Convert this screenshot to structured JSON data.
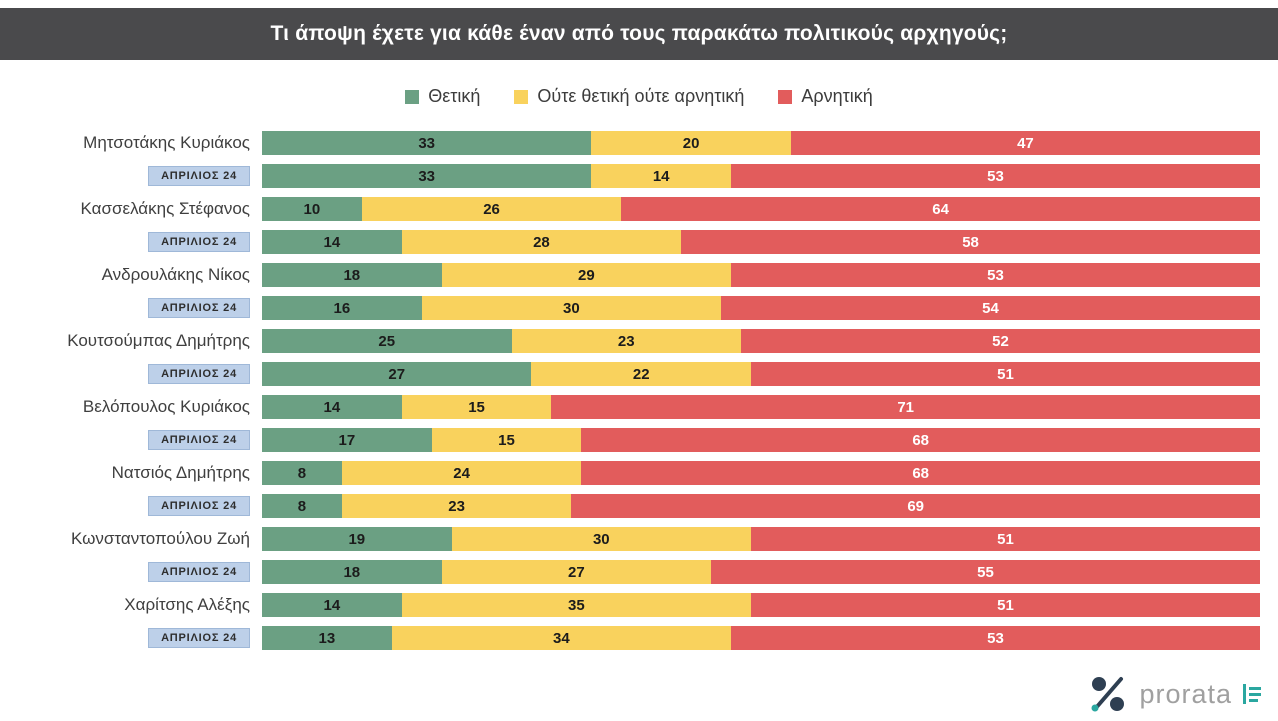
{
  "title": "Τι άποψη έχετε για κάθε έναν από τους παρακάτω πολιτικούς αρχηγούς;",
  "legend_note": "legend is built from chart_data.series",
  "branding": {
    "logo_text": "prorata",
    "logo_dark_color": "#2e3f52",
    "logo_teal_color": "#2aa7a0"
  },
  "chart_data": {
    "type": "bar",
    "orientation": "horizontal",
    "stacked": true,
    "x_range": [
      0,
      100
    ],
    "grid": false,
    "legend_position": "top-center",
    "series": [
      {
        "name": "Θετική",
        "color": "#6ba083",
        "text_color": "#1c1c1c"
      },
      {
        "name": "Ούτε θετική ούτε αρνητική",
        "color": "#f9d25d",
        "text_color": "#1c1c1c"
      },
      {
        "name": "Αρνητική",
        "color": "#e25c5c",
        "text_color": "#ffffff"
      }
    ],
    "rows": [
      {
        "label": "Μητσοτάκης Κυριάκος",
        "kind": "leader",
        "values": [
          33,
          20,
          47
        ]
      },
      {
        "label": "ΑΠΡΙΛΙΟΣ 24",
        "kind": "period",
        "values": [
          33,
          14,
          53
        ]
      },
      {
        "label": "Κασσελάκης Στέφανος",
        "kind": "leader",
        "values": [
          10,
          26,
          64
        ]
      },
      {
        "label": "ΑΠΡΙΛΙΟΣ 24",
        "kind": "period",
        "values": [
          14,
          28,
          58
        ]
      },
      {
        "label": "Ανδρουλάκης Νίκος",
        "kind": "leader",
        "values": [
          18,
          29,
          53
        ]
      },
      {
        "label": "ΑΠΡΙΛΙΟΣ 24",
        "kind": "period",
        "values": [
          16,
          30,
          54
        ]
      },
      {
        "label": "Κουτσούμπας Δημήτρης",
        "kind": "leader",
        "values": [
          25,
          23,
          52
        ]
      },
      {
        "label": "ΑΠΡΙΛΙΟΣ 24",
        "kind": "period",
        "values": [
          27,
          22,
          51
        ]
      },
      {
        "label": "Βελόπουλος Κυριάκος",
        "kind": "leader",
        "values": [
          14,
          15,
          71
        ]
      },
      {
        "label": "ΑΠΡΙΛΙΟΣ 24",
        "kind": "period",
        "values": [
          17,
          15,
          68
        ]
      },
      {
        "label": "Νατσιός Δημήτρης",
        "kind": "leader",
        "values": [
          8,
          24,
          68
        ]
      },
      {
        "label": "ΑΠΡΙΛΙΟΣ 24",
        "kind": "period",
        "values": [
          8,
          23,
          69
        ]
      },
      {
        "label": "Κωνσταντοπούλου Ζωή",
        "kind": "leader",
        "values": [
          19,
          30,
          51
        ]
      },
      {
        "label": "ΑΠΡΙΛΙΟΣ 24",
        "kind": "period",
        "values": [
          18,
          27,
          55
        ]
      },
      {
        "label": "Χαρίτσης Αλέξης",
        "kind": "leader",
        "values": [
          14,
          35,
          51
        ]
      },
      {
        "label": "ΑΠΡΙΛΙΟΣ 24",
        "kind": "period",
        "values": [
          13,
          34,
          53
        ]
      }
    ]
  }
}
